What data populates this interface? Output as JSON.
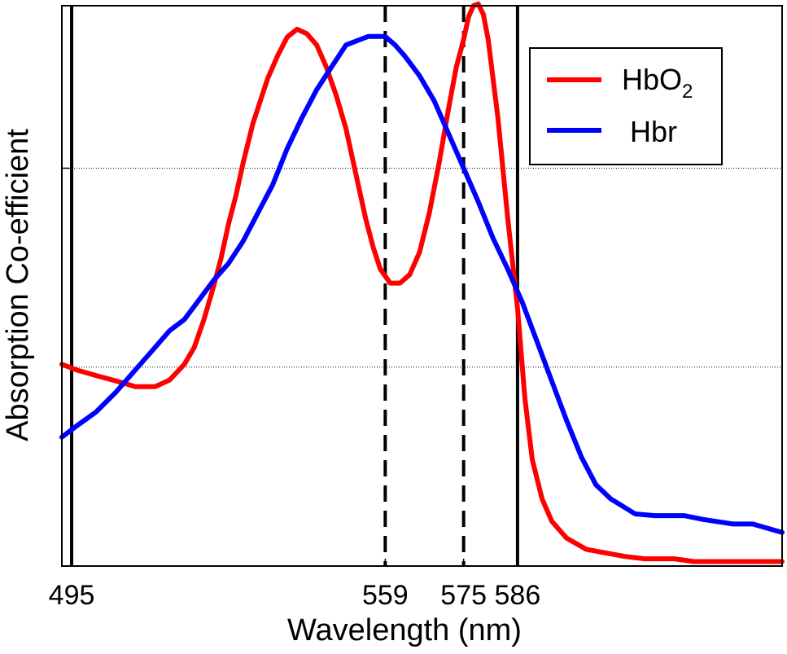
{
  "chart_data": {
    "type": "line",
    "title": "",
    "xlabel": "Wavelength (nm)",
    "ylabel": "Absorption  Co-efficient",
    "xlim": [
      493,
      640
    ],
    "ylim": [
      0,
      1.0
    ],
    "x_ticks": [
      495,
      559,
      575,
      586
    ],
    "x_tick_labels": [
      "495",
      "559",
      "575",
      "586"
    ],
    "y_ticks": [
      0.355,
      0.71
    ],
    "y_tick_labels": [],
    "grid": "horizontal-dotted",
    "legend_position": "top-right",
    "vertical_lines": [
      {
        "x": 495,
        "style": "solid"
      },
      {
        "x": 559,
        "style": "dashed"
      },
      {
        "x": 575,
        "style": "dashed"
      },
      {
        "x": 586,
        "style": "solid"
      }
    ],
    "series": [
      {
        "name": "HbO2",
        "legend_main": "HbO",
        "legend_sub": "2",
        "color": "#ff0000",
        "x": [
          493,
          496,
          500,
          505,
          508,
          512,
          515,
          518,
          520,
          522,
          524,
          525.5,
          527,
          528.5,
          530,
          532,
          535,
          537,
          539,
          541,
          543,
          545,
          547,
          549,
          551,
          553,
          555,
          556.5,
          558,
          560,
          562,
          564,
          566,
          568,
          570,
          572,
          573.5,
          575,
          576,
          577,
          578,
          579,
          580,
          582,
          584,
          586,
          587.5,
          589,
          591,
          593,
          596,
          600,
          603,
          608,
          612,
          618,
          622,
          628,
          632,
          640
        ],
        "y": [
          0.36,
          0.35,
          0.34,
          0.328,
          0.32,
          0.32,
          0.332,
          0.36,
          0.39,
          0.44,
          0.5,
          0.55,
          0.61,
          0.66,
          0.72,
          0.79,
          0.87,
          0.91,
          0.944,
          0.958,
          0.95,
          0.93,
          0.89,
          0.84,
          0.78,
          0.7,
          0.62,
          0.57,
          0.53,
          0.505,
          0.505,
          0.52,
          0.56,
          0.63,
          0.72,
          0.82,
          0.89,
          0.94,
          0.98,
          1.0,
          1.003,
          0.985,
          0.94,
          0.8,
          0.62,
          0.46,
          0.3,
          0.19,
          0.12,
          0.08,
          0.05,
          0.03,
          0.025,
          0.017,
          0.013,
          0.013,
          0.008,
          0.008,
          0.008,
          0.008
        ]
      },
      {
        "name": "Hbr",
        "legend_main": "Hbr",
        "legend_sub": "",
        "color": "#0000ff",
        "x": [
          493,
          496,
          500,
          504,
          508,
          512,
          515,
          518,
          521,
          524,
          527,
          530,
          533,
          536,
          539,
          542,
          545,
          548,
          551,
          554,
          555.5,
          557,
          559,
          561,
          563,
          566,
          569,
          572,
          575,
          578,
          581,
          584,
          587,
          590,
          593,
          596,
          599,
          602,
          605,
          610,
          614,
          620,
          624,
          630,
          634,
          640
        ],
        "y": [
          0.23,
          0.25,
          0.275,
          0.31,
          0.35,
          0.39,
          0.42,
          0.44,
          0.475,
          0.51,
          0.54,
          0.58,
          0.63,
          0.68,
          0.745,
          0.8,
          0.85,
          0.89,
          0.93,
          0.94,
          0.945,
          0.945,
          0.945,
          0.93,
          0.91,
          0.875,
          0.83,
          0.77,
          0.71,
          0.65,
          0.585,
          0.53,
          0.47,
          0.4,
          0.33,
          0.26,
          0.195,
          0.145,
          0.12,
          0.093,
          0.09,
          0.09,
          0.083,
          0.075,
          0.075,
          0.06
        ]
      }
    ]
  }
}
